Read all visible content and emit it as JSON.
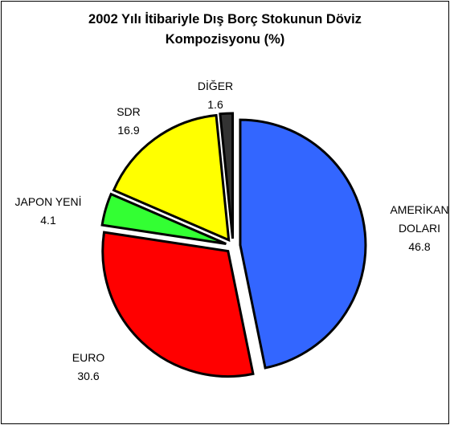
{
  "chart_data": {
    "type": "pie",
    "title": "2002 Yılı İtibariyle Dış Borç Stokunun Döviz Kompozisyonu (%)",
    "categories": [
      "AMERİKAN DOLARI",
      "EURO",
      "JAPON YENİ",
      "SDR",
      "DİĞER"
    ],
    "values": [
      46.8,
      30.6,
      4.1,
      16.9,
      1.6
    ],
    "colors": [
      "#3366ff",
      "#ff0000",
      "#33ff33",
      "#ffff00",
      "#333333"
    ]
  }
}
